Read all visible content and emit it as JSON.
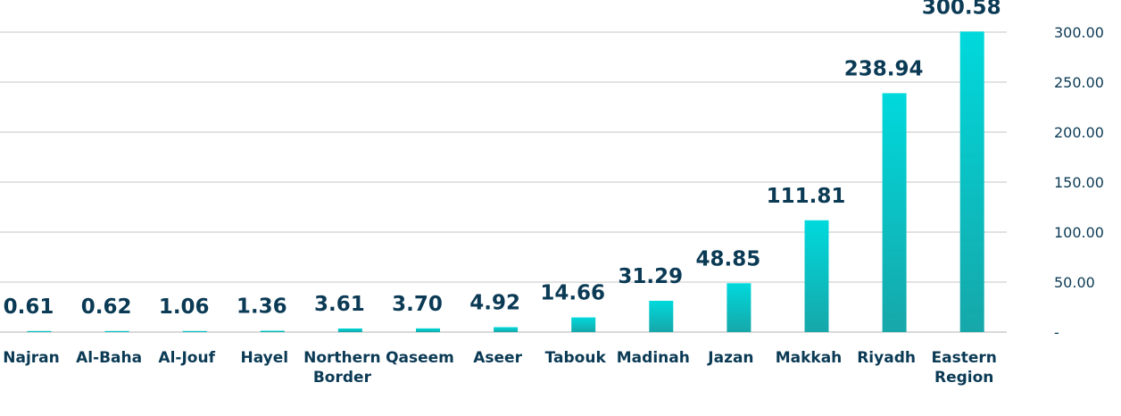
{
  "chart_data": {
    "type": "bar",
    "categories": [
      [
        "Najran"
      ],
      [
        "Al-Baha"
      ],
      [
        "Al-Jouf"
      ],
      [
        "Hayel"
      ],
      [
        "Northern",
        "Border"
      ],
      [
        "Qaseem"
      ],
      [
        "Aseer"
      ],
      [
        "Tabouk"
      ],
      [
        "Madinah"
      ],
      [
        "Jazan"
      ],
      [
        "Makkah"
      ],
      [
        "Riyadh"
      ],
      [
        "Eastern",
        "Region"
      ]
    ],
    "values": [
      0.61,
      0.62,
      1.06,
      1.36,
      3.61,
      3.7,
      4.92,
      14.66,
      31.29,
      48.85,
      111.81,
      238.94,
      300.58
    ],
    "value_labels": [
      "0.61",
      "0.62",
      "1.06",
      "1.36",
      "3.61",
      "3.70",
      "4.92",
      "14.66",
      "31.29",
      "48.85",
      "111.81",
      "238.94",
      "300.58"
    ],
    "y_ticks": [
      0,
      50,
      100,
      150,
      200,
      250,
      300
    ],
    "y_tick_labels": [
      "-",
      "50.00",
      "100.00",
      "150.00",
      "200.00",
      "250.00",
      "300.00"
    ],
    "ylim": [
      0,
      300
    ],
    "y_axis_side": "right",
    "grid": true,
    "colors": {
      "bar_top": "#00d9dc",
      "bar_bottom": "#16a7a9",
      "grid": "#d9d9d9",
      "text": "#0b3a55"
    }
  }
}
